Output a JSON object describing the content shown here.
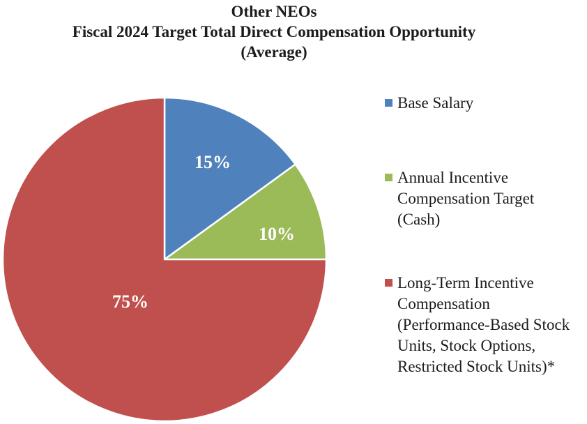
{
  "title": {
    "line1": "Other NEOs",
    "line2": "Fiscal 2024 Target Total Direct Compensation Opportunity",
    "line3": "(Average)"
  },
  "chart_data": {
    "type": "pie",
    "title": "Other NEOs Fiscal 2024 Target Total Direct Compensation Opportunity (Average)",
    "unit": "percent",
    "start_angle_deg": 0,
    "direction": "clockwise",
    "legend_position": "right",
    "grid": false,
    "slices": [
      {
        "label": "Base Salary",
        "value": 15,
        "data_label": "15%",
        "color": "#4F81BD"
      },
      {
        "label": "Annual Incentive Compensation Target (Cash)",
        "value": 10,
        "data_label": "10%",
        "color": "#9BBB59"
      },
      {
        "label": "Long-Term Incentive Compensation (Performance-Based Stock Units, Stock Options, Restricted Stock Units)*",
        "value": 75,
        "data_label": "75%",
        "color": "#C0504D"
      }
    ],
    "data_label_color": "#FFFFFF"
  },
  "legend": {
    "items": [
      {
        "label": "Base Salary",
        "color": "#4F81BD"
      },
      {
        "label": "Annual Incentive\nCompensation Target\n(Cash)",
        "color": "#9BBB59"
      },
      {
        "label": "Long-Term Incentive\nCompensation\n(Performance-Based Stock\nUnits, Stock Options,\nRestricted Stock Units)*",
        "color": "#C0504D"
      }
    ]
  },
  "colors": {
    "background": "#FFFFFF",
    "title_text": "#1C1C1C",
    "legend_text": "#1C1C1C",
    "slice_border": "#FFFFFF"
  }
}
